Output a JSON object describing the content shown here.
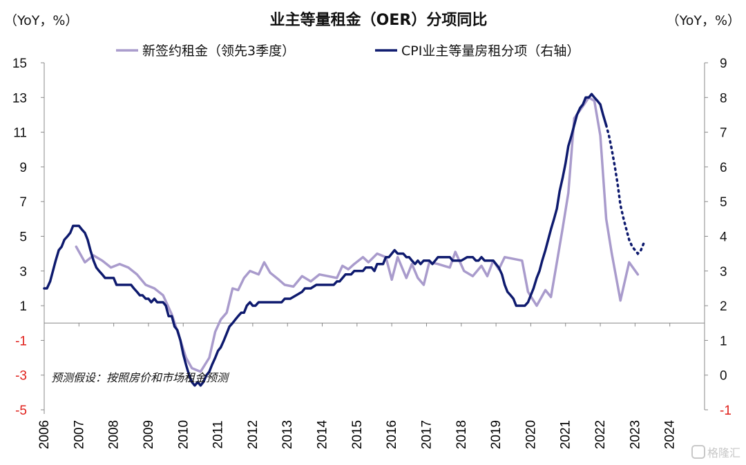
{
  "chart_data": {
    "type": "line",
    "title": "业主等量租金（OER）分项同比",
    "left_unit": "（YoY，%）",
    "right_unit": "（YoY，%）",
    "note": "预测假设：按照房价和市场租金预测",
    "left_axis": {
      "min": -5,
      "max": 15,
      "ticks": [
        -5,
        -3,
        -1,
        1,
        3,
        5,
        7,
        9,
        11,
        13,
        15
      ],
      "negative_color": "#e0201b"
    },
    "right_axis": {
      "min": -1,
      "max": 9,
      "ticks": [
        -1,
        0,
        1,
        2,
        3,
        4,
        5,
        6,
        7,
        8,
        9
      ],
      "negative_color": "#e0201b"
    },
    "x_axis": {
      "min": 2006,
      "max": 2025,
      "ticks": [
        "2006",
        "2007",
        "2008",
        "2009",
        "2010",
        "2011",
        "2012",
        "2013",
        "2014",
        "2015",
        "2016",
        "2017",
        "2018",
        "2019",
        "2020",
        "2021",
        "2022",
        "2023",
        "2024"
      ]
    },
    "series": [
      {
        "name": "新签约租金（领先3季度）",
        "axis": "left",
        "color": "#a99bcc",
        "points": [
          [
            2006.92,
            4.4
          ],
          [
            2007.17,
            3.5
          ],
          [
            2007.42,
            3.9
          ],
          [
            2007.67,
            3.6
          ],
          [
            2007.92,
            3.2
          ],
          [
            2008.17,
            3.4
          ],
          [
            2008.42,
            3.2
          ],
          [
            2008.67,
            2.8
          ],
          [
            2008.92,
            2.2
          ],
          [
            2009.17,
            2.0
          ],
          [
            2009.42,
            1.6
          ],
          [
            2009.67,
            0.5
          ],
          [
            2009.92,
            -1.0
          ],
          [
            2010.08,
            -2.0
          ],
          [
            2010.25,
            -2.6
          ],
          [
            2010.5,
            -2.8
          ],
          [
            2010.75,
            -2.0
          ],
          [
            2010.92,
            -0.5
          ],
          [
            2011.08,
            0.2
          ],
          [
            2011.25,
            0.6
          ],
          [
            2011.42,
            2.0
          ],
          [
            2011.58,
            1.9
          ],
          [
            2011.75,
            2.6
          ],
          [
            2011.92,
            3.0
          ],
          [
            2012.17,
            2.8
          ],
          [
            2012.33,
            3.5
          ],
          [
            2012.5,
            2.9
          ],
          [
            2012.75,
            2.5
          ],
          [
            2012.92,
            2.2
          ],
          [
            2013.17,
            2.1
          ],
          [
            2013.42,
            2.7
          ],
          [
            2013.67,
            2.4
          ],
          [
            2013.92,
            2.8
          ],
          [
            2014.17,
            2.7
          ],
          [
            2014.42,
            2.6
          ],
          [
            2014.58,
            3.3
          ],
          [
            2014.75,
            3.1
          ],
          [
            2014.92,
            3.4
          ],
          [
            2015.17,
            3.8
          ],
          [
            2015.33,
            3.5
          ],
          [
            2015.58,
            4.0
          ],
          [
            2015.83,
            3.8
          ],
          [
            2016.0,
            2.5
          ],
          [
            2016.17,
            3.8
          ],
          [
            2016.42,
            2.6
          ],
          [
            2016.58,
            3.4
          ],
          [
            2016.75,
            2.6
          ],
          [
            2016.92,
            2.2
          ],
          [
            2017.08,
            3.5
          ],
          [
            2017.33,
            3.4
          ],
          [
            2017.5,
            3.3
          ],
          [
            2017.67,
            3.2
          ],
          [
            2017.83,
            4.1
          ],
          [
            2018.08,
            3.0
          ],
          [
            2018.33,
            2.7
          ],
          [
            2018.58,
            3.3
          ],
          [
            2018.75,
            2.7
          ],
          [
            2018.92,
            3.6
          ],
          [
            2019.08,
            3.1
          ],
          [
            2019.25,
            3.8
          ],
          [
            2019.5,
            3.7
          ],
          [
            2019.75,
            3.6
          ],
          [
            2019.92,
            1.8
          ],
          [
            2020.17,
            1.0
          ],
          [
            2020.42,
            1.9
          ],
          [
            2020.58,
            1.5
          ],
          [
            2020.75,
            3.5
          ],
          [
            2020.92,
            5.5
          ],
          [
            2021.08,
            7.5
          ],
          [
            2021.25,
            11.8
          ],
          [
            2021.5,
            12.5
          ],
          [
            2021.67,
            13.0
          ],
          [
            2021.83,
            12.8
          ],
          [
            2022.0,
            10.8
          ],
          [
            2022.17,
            6.0
          ],
          [
            2022.33,
            4.0
          ],
          [
            2022.58,
            1.3
          ],
          [
            2022.83,
            3.5
          ],
          [
            2023.08,
            2.8
          ]
        ]
      },
      {
        "name": "CPI业主等量房租分项（右轴）",
        "axis": "right",
        "color": "#0e1a6e",
        "points": [
          [
            2006.0,
            2.5
          ],
          [
            2006.08,
            2.5
          ],
          [
            2006.17,
            2.7
          ],
          [
            2006.25,
            3.0
          ],
          [
            2006.33,
            3.3
          ],
          [
            2006.42,
            3.6
          ],
          [
            2006.5,
            3.7
          ],
          [
            2006.58,
            3.9
          ],
          [
            2006.67,
            4.0
          ],
          [
            2006.75,
            4.1
          ],
          [
            2006.83,
            4.3
          ],
          [
            2006.92,
            4.3
          ],
          [
            2007.0,
            4.3
          ],
          [
            2007.08,
            4.2
          ],
          [
            2007.17,
            4.1
          ],
          [
            2007.25,
            3.9
          ],
          [
            2007.33,
            3.6
          ],
          [
            2007.42,
            3.3
          ],
          [
            2007.5,
            3.1
          ],
          [
            2007.58,
            3.0
          ],
          [
            2007.67,
            2.9
          ],
          [
            2007.75,
            2.8
          ],
          [
            2007.83,
            2.8
          ],
          [
            2007.92,
            2.8
          ],
          [
            2008.0,
            2.8
          ],
          [
            2008.08,
            2.6
          ],
          [
            2008.17,
            2.6
          ],
          [
            2008.25,
            2.6
          ],
          [
            2008.33,
            2.6
          ],
          [
            2008.42,
            2.6
          ],
          [
            2008.5,
            2.6
          ],
          [
            2008.58,
            2.5
          ],
          [
            2008.67,
            2.4
          ],
          [
            2008.75,
            2.3
          ],
          [
            2008.83,
            2.3
          ],
          [
            2008.92,
            2.2
          ],
          [
            2009.0,
            2.2
          ],
          [
            2009.08,
            2.1
          ],
          [
            2009.17,
            2.2
          ],
          [
            2009.25,
            2.1
          ],
          [
            2009.33,
            2.1
          ],
          [
            2009.42,
            2.1
          ],
          [
            2009.5,
            2.0
          ],
          [
            2009.58,
            1.7
          ],
          [
            2009.67,
            1.7
          ],
          [
            2009.75,
            1.4
          ],
          [
            2009.83,
            1.3
          ],
          [
            2009.92,
            1.0
          ],
          [
            2010.0,
            0.6
          ],
          [
            2010.08,
            0.3
          ],
          [
            2010.17,
            0.0
          ],
          [
            2010.25,
            -0.2
          ],
          [
            2010.33,
            -0.3
          ],
          [
            2010.42,
            -0.2
          ],
          [
            2010.5,
            -0.3
          ],
          [
            2010.58,
            -0.2
          ],
          [
            2010.67,
            0.0
          ],
          [
            2010.75,
            0.1
          ],
          [
            2010.83,
            0.3
          ],
          [
            2010.92,
            0.5
          ],
          [
            2011.0,
            0.7
          ],
          [
            2011.08,
            0.8
          ],
          [
            2011.17,
            1.0
          ],
          [
            2011.25,
            1.2
          ],
          [
            2011.33,
            1.4
          ],
          [
            2011.42,
            1.5
          ],
          [
            2011.5,
            1.6
          ],
          [
            2011.58,
            1.7
          ],
          [
            2011.67,
            1.8
          ],
          [
            2011.75,
            1.8
          ],
          [
            2011.83,
            2.0
          ],
          [
            2011.92,
            2.1
          ],
          [
            2012.0,
            2.0
          ],
          [
            2012.08,
            2.0
          ],
          [
            2012.17,
            2.1
          ],
          [
            2012.33,
            2.1
          ],
          [
            2012.5,
            2.1
          ],
          [
            2012.67,
            2.1
          ],
          [
            2012.83,
            2.1
          ],
          [
            2012.92,
            2.2
          ],
          [
            2013.08,
            2.2
          ],
          [
            2013.25,
            2.3
          ],
          [
            2013.42,
            2.4
          ],
          [
            2013.5,
            2.5
          ],
          [
            2013.67,
            2.5
          ],
          [
            2013.83,
            2.6
          ],
          [
            2014.0,
            2.6
          ],
          [
            2014.17,
            2.6
          ],
          [
            2014.25,
            2.6
          ],
          [
            2014.33,
            2.6
          ],
          [
            2014.42,
            2.7
          ],
          [
            2014.5,
            2.7
          ],
          [
            2014.67,
            2.9
          ],
          [
            2014.83,
            2.9
          ],
          [
            2014.92,
            3.0
          ],
          [
            2015.0,
            3.0
          ],
          [
            2015.17,
            3.0
          ],
          [
            2015.25,
            3.1
          ],
          [
            2015.42,
            3.1
          ],
          [
            2015.5,
            3.0
          ],
          [
            2015.58,
            3.2
          ],
          [
            2015.67,
            3.2
          ],
          [
            2015.75,
            3.2
          ],
          [
            2015.83,
            3.4
          ],
          [
            2015.92,
            3.4
          ],
          [
            2016.0,
            3.5
          ],
          [
            2016.08,
            3.6
          ],
          [
            2016.17,
            3.5
          ],
          [
            2016.33,
            3.5
          ],
          [
            2016.42,
            3.4
          ],
          [
            2016.5,
            3.4
          ],
          [
            2016.58,
            3.3
          ],
          [
            2016.67,
            3.2
          ],
          [
            2016.75,
            3.3
          ],
          [
            2016.83,
            3.2
          ],
          [
            2016.92,
            3.3
          ],
          [
            2017.0,
            3.3
          ],
          [
            2017.08,
            3.3
          ],
          [
            2017.17,
            3.2
          ],
          [
            2017.25,
            3.3
          ],
          [
            2017.33,
            3.4
          ],
          [
            2017.42,
            3.4
          ],
          [
            2017.5,
            3.4
          ],
          [
            2017.67,
            3.4
          ],
          [
            2017.75,
            3.3
          ],
          [
            2017.83,
            3.3
          ],
          [
            2018.0,
            3.3
          ],
          [
            2018.17,
            3.4
          ],
          [
            2018.33,
            3.4
          ],
          [
            2018.42,
            3.3
          ],
          [
            2018.5,
            3.3
          ],
          [
            2018.58,
            3.4
          ],
          [
            2018.67,
            3.3
          ],
          [
            2018.75,
            3.3
          ],
          [
            2018.83,
            3.3
          ],
          [
            2018.92,
            3.3
          ],
          [
            2019.0,
            3.2
          ],
          [
            2019.08,
            3.1
          ],
          [
            2019.17,
            2.9
          ],
          [
            2019.25,
            2.6
          ],
          [
            2019.33,
            2.4
          ],
          [
            2019.42,
            2.3
          ],
          [
            2019.5,
            2.2
          ],
          [
            2019.58,
            2.0
          ],
          [
            2019.67,
            2.0
          ],
          [
            2019.75,
            2.0
          ],
          [
            2019.83,
            2.0
          ],
          [
            2019.92,
            2.1
          ],
          [
            2020.0,
            2.3
          ],
          [
            2020.08,
            2.5
          ],
          [
            2020.17,
            2.8
          ],
          [
            2020.25,
            3.0
          ],
          [
            2020.33,
            3.3
          ],
          [
            2020.42,
            3.6
          ],
          [
            2020.5,
            3.9
          ],
          [
            2020.58,
            4.2
          ],
          [
            2020.67,
            4.5
          ],
          [
            2020.75,
            4.8
          ],
          [
            2020.83,
            5.3
          ],
          [
            2020.92,
            5.7
          ],
          [
            2021.0,
            6.1
          ],
          [
            2021.08,
            6.6
          ],
          [
            2021.17,
            6.9
          ],
          [
            2021.25,
            7.2
          ],
          [
            2021.33,
            7.5
          ],
          [
            2021.42,
            7.7
          ],
          [
            2021.5,
            7.8
          ],
          [
            2021.58,
            8.0
          ],
          [
            2021.67,
            8.0
          ],
          [
            2021.75,
            8.1
          ],
          [
            2021.83,
            8.0
          ],
          [
            2021.92,
            7.9
          ],
          [
            2022.0,
            7.8
          ],
          [
            2022.08,
            7.5
          ],
          [
            2022.17,
            7.2
          ]
        ],
        "forecast_points": [
          [
            2022.17,
            7.2
          ],
          [
            2022.25,
            6.9
          ],
          [
            2022.33,
            6.5
          ],
          [
            2022.42,
            6.0
          ],
          [
            2022.5,
            5.5
          ],
          [
            2022.58,
            4.9
          ],
          [
            2022.67,
            4.5
          ],
          [
            2022.75,
            4.2
          ],
          [
            2022.83,
            3.9
          ],
          [
            2022.92,
            3.7
          ],
          [
            2023.0,
            3.6
          ],
          [
            2023.08,
            3.5
          ],
          [
            2023.17,
            3.6
          ],
          [
            2023.25,
            3.8
          ]
        ]
      }
    ],
    "legend_placement": "top-center"
  },
  "watermark": "格隆汇"
}
